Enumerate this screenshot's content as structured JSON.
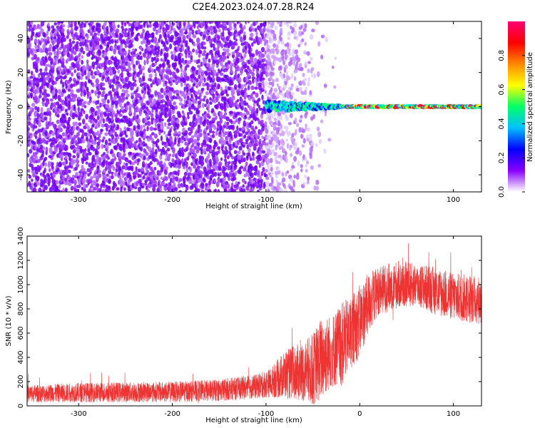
{
  "figure_title": "C2E4.2023.024.07.28.R24",
  "chart_data": [
    {
      "type": "heatmap",
      "xlabel": "Height of straight line (km)",
      "ylabel": "Frequency (Hz)",
      "xlim": [
        -355,
        130
      ],
      "ylim": [
        -50,
        50
      ],
      "x_ticks": [
        -300,
        -200,
        -100,
        0,
        100
      ],
      "y_ticks": [
        -40,
        -20,
        0,
        20,
        40
      ],
      "colorbar": {
        "label": "Normalized spectral amplitude",
        "range": [
          0.0,
          1.0
        ],
        "ticks": [
          "0.0",
          "0.2",
          "0.4",
          "0.6",
          "0.8"
        ],
        "colormap": [
          "#ffffff",
          "#8800ff",
          "#0000ff",
          "#00c0ff",
          "#00ff66",
          "#ffff00",
          "#ff8800",
          "#ff0000",
          "#ff0077"
        ]
      },
      "noise_region_x": [
        -355,
        -25
      ],
      "noise_density_edge_km": -100,
      "carrier": {
        "frequency_hz": 0,
        "x_start_km": -100,
        "strong_from_km": -20
      },
      "grid": false,
      "legend": "none"
    },
    {
      "type": "line",
      "xlabel": "Height of straight line (km)",
      "ylabel": "SNR (10 * v/v)",
      "xlim": [
        -355,
        130
      ],
      "ylim": [
        0,
        1400
      ],
      "x_ticks": [
        -300,
        -200,
        -100,
        0,
        100
      ],
      "y_ticks": [
        0,
        200,
        400,
        600,
        800,
        1000,
        1200,
        1400
      ],
      "series_color": "#ee3333",
      "envelope": {
        "x": [
          -355,
          -300,
          -200,
          -150,
          -110,
          -95,
          -80,
          -60,
          -50,
          -40,
          -30,
          -20,
          -10,
          0,
          10,
          20,
          40,
          60,
          80,
          100,
          130
        ],
        "y_mean": [
          100,
          110,
          115,
          130,
          160,
          190,
          260,
          280,
          300,
          400,
          450,
          500,
          600,
          700,
          850,
          950,
          1000,
          1000,
          950,
          900,
          870
        ],
        "y_spread": [
          70,
          80,
          85,
          90,
          100,
          120,
          200,
          250,
          300,
          350,
          300,
          350,
          300,
          300,
          250,
          200,
          200,
          180,
          200,
          200,
          200
        ]
      },
      "grid": false,
      "legend": "none"
    }
  ]
}
